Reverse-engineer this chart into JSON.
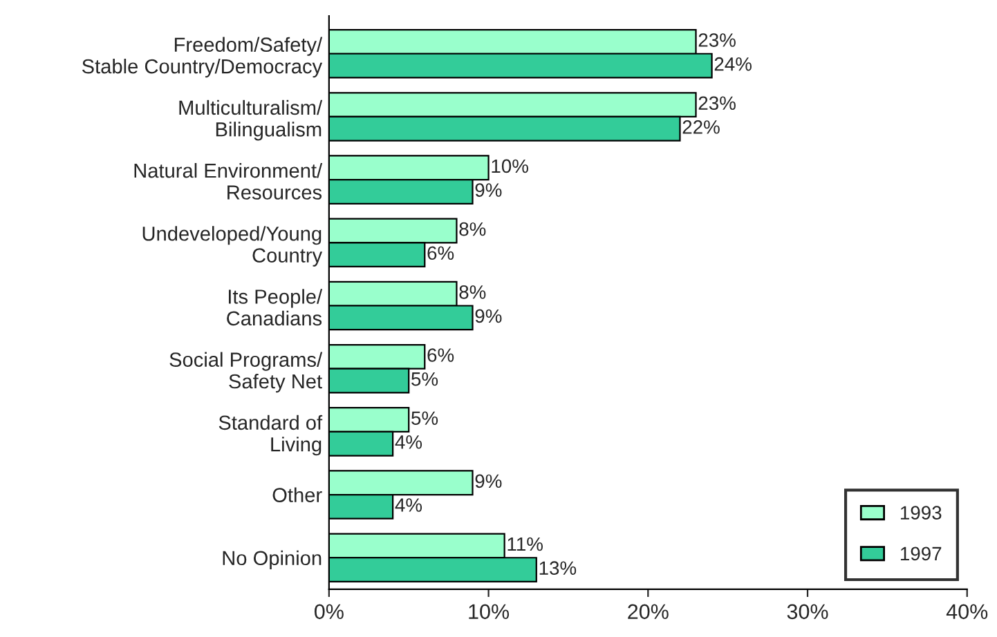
{
  "chart_data": {
    "type": "bar",
    "orientation": "horizontal",
    "categories": [
      "Freedom/Safety/\nStable Country/Democracy",
      "Multiculturalism/\nBilingualism",
      "Natural Environment/\nResources",
      "Undeveloped/Young\nCountry",
      "Its People/\nCanadians",
      "Social Programs/\nSafety Net",
      "Standard of\nLiving",
      "Other",
      "No Opinion"
    ],
    "series": [
      {
        "name": "1993",
        "color": "#99ffcc",
        "values": [
          23,
          23,
          10,
          8,
          8,
          6,
          5,
          9,
          11
        ],
        "value_labels": [
          "23%",
          "23%",
          "10%",
          "8%",
          "8%",
          "6%",
          "5%",
          "9%",
          "11%"
        ]
      },
      {
        "name": "1997",
        "color": "#33cc99",
        "values": [
          24,
          22,
          9,
          6,
          9,
          5,
          4,
          4,
          13
        ],
        "value_labels": [
          "24%",
          "22%",
          "9%",
          "6%",
          "9%",
          "5%",
          "4%",
          "4%",
          "13%"
        ]
      }
    ],
    "xlim": [
      0,
      40
    ],
    "xticks": [
      {
        "value": 0,
        "label": "0%"
      },
      {
        "value": 10,
        "label": "10%"
      },
      {
        "value": 20,
        "label": "20%"
      },
      {
        "value": 30,
        "label": "30%"
      },
      {
        "value": 40,
        "label": "40%"
      }
    ],
    "grid": false,
    "legend": "bottom right"
  }
}
